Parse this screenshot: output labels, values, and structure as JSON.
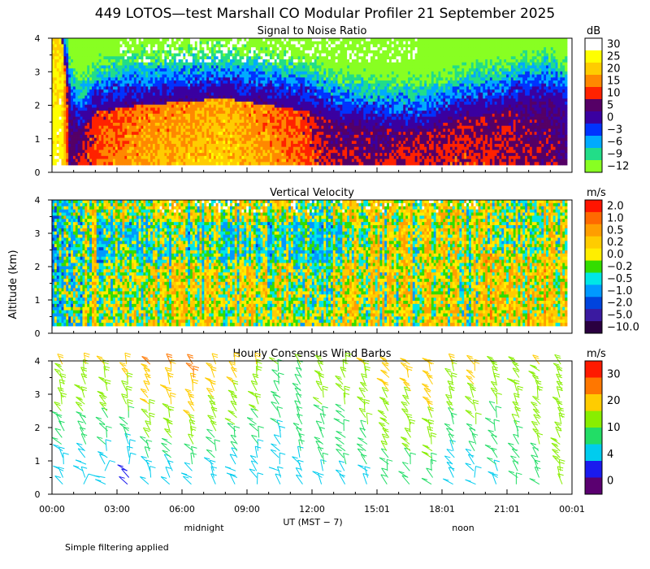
{
  "title": "449 LOTOS—test Marshall CO Modular Profiler 21 September 2025",
  "y_axis_label": "Altitude (km)",
  "x_axis_label": "UT  (MST − 7)",
  "x_ticks": [
    "00:00",
    "03:00",
    "06:00",
    "09:00",
    "12:00",
    "15:01",
    "18:01",
    "21:01",
    "00:01"
  ],
  "x_annotations": {
    "midnight": "midnight",
    "noon": "noon"
  },
  "y_ticks": [
    "0",
    "1",
    "2",
    "3",
    "4"
  ],
  "footnote": "Simple filtering applied",
  "panels": [
    {
      "title": "Signal to Noise Ratio",
      "unit": "dB",
      "colorbar": {
        "labels": [
          "30",
          "25",
          "20",
          "15",
          "10",
          "5",
          "0",
          "−3",
          "−6",
          "−9",
          "−12"
        ],
        "colors": [
          "#ffffff",
          "#ffff00",
          "#ffcc00",
          "#ff8800",
          "#ff2200",
          "#550066",
          "#3a00a0",
          "#0033ff",
          "#00aaff",
          "#22dd88",
          "#88ff22"
        ]
      }
    },
    {
      "title": "Vertical Velocity",
      "unit": "m/s",
      "colorbar": {
        "labels": [
          "2.0",
          "1.0",
          "0.5",
          "0.2",
          "0.0",
          "−0.2",
          "−0.5",
          "−1.0",
          "−2.0",
          "−5.0",
          "−10.0"
        ],
        "colors": [
          "#ff1500",
          "#ff6a00",
          "#ff9e00",
          "#ffcc00",
          "#ffee00",
          "#33dd00",
          "#00e6e6",
          "#0099ff",
          "#0044dd",
          "#3a1aa0",
          "#2a0040"
        ]
      }
    },
    {
      "title": "Hourly Consensus Wind Barbs",
      "unit": "m/s",
      "colorbar": {
        "labels": [
          "30",
          "20",
          "10",
          "4",
          "0"
        ],
        "colors": [
          "#ff1a00",
          "#ff7700",
          "#ffcc00",
          "#88ee00",
          "#22dd66",
          "#00ccee",
          "#1a1aee",
          "#5a0070"
        ]
      }
    }
  ],
  "chart_data": [
    {
      "type": "heatmap",
      "title": "Signal to Noise Ratio",
      "xlabel": "UT (MST − 7)",
      "ylabel": "Altitude (km)",
      "zlabel": "dB",
      "x_range_hours": [
        0,
        24
      ],
      "ylim": [
        0,
        4
      ],
      "zlim": [
        -12,
        33
      ],
      "profile": {
        "hours": [
          0,
          0.4,
          0.8,
          1.2,
          2,
          4,
          6,
          8,
          10,
          12,
          13,
          15,
          17,
          18,
          19,
          20,
          21,
          22,
          23,
          24
        ],
        "top_km": [
          4,
          4,
          1.8,
          1.2,
          1.8,
          2.0,
          2.1,
          2.2,
          2.0,
          1.8,
          1.5,
          1.3,
          1.2,
          1.4,
          1.6,
          1.7,
          1.8,
          2.0,
          2.1,
          1.8
        ],
        "core_db": [
          28,
          30,
          6,
          10,
          16,
          20,
          22,
          24,
          20,
          15,
          10,
          10,
          12,
          12,
          13,
          12,
          11,
          10,
          9,
          8
        ]
      }
    },
    {
      "type": "heatmap",
      "title": "Vertical Velocity",
      "xlabel": "UT (MST − 7)",
      "ylabel": "Altitude (km)",
      "zlabel": "m/s",
      "x_range_hours": [
        0,
        24
      ],
      "ylim": [
        0,
        4
      ],
      "zlim": [
        -10,
        2
      ],
      "typical_range": [
        -0.5,
        1.0
      ]
    },
    {
      "type": "wind_barbs",
      "title": "Hourly Consensus Wind Barbs",
      "xlabel": "UT (MST − 7)",
      "ylabel": "Altitude (km)",
      "zlabel": "m/s",
      "hours": [
        0,
        1,
        2,
        3,
        4,
        5,
        6,
        7,
        8,
        9,
        10,
        11,
        12,
        13,
        14,
        15,
        16,
        17,
        18,
        19,
        20,
        21,
        22,
        23
      ],
      "altitudes_km": [
        0.3,
        0.5,
        0.7,
        0.9,
        1.1,
        1.3,
        1.5,
        1.7,
        1.9,
        2.1,
        2.3,
        2.5,
        2.7,
        2.9,
        3.1,
        3.3,
        3.5,
        3.7,
        3.9
      ],
      "low_speed_ms": [
        4,
        4,
        4,
        2,
        4,
        4,
        4,
        4,
        4,
        4,
        4,
        6,
        6,
        6,
        6,
        8,
        8,
        8,
        4,
        4,
        6,
        8,
        8,
        10
      ],
      "high_speed_ms": [
        14,
        14,
        14,
        16,
        20,
        20,
        22,
        18,
        16,
        14,
        10,
        10,
        12,
        12,
        14,
        16,
        16,
        18,
        14,
        16,
        12,
        12,
        14,
        12
      ]
    }
  ]
}
